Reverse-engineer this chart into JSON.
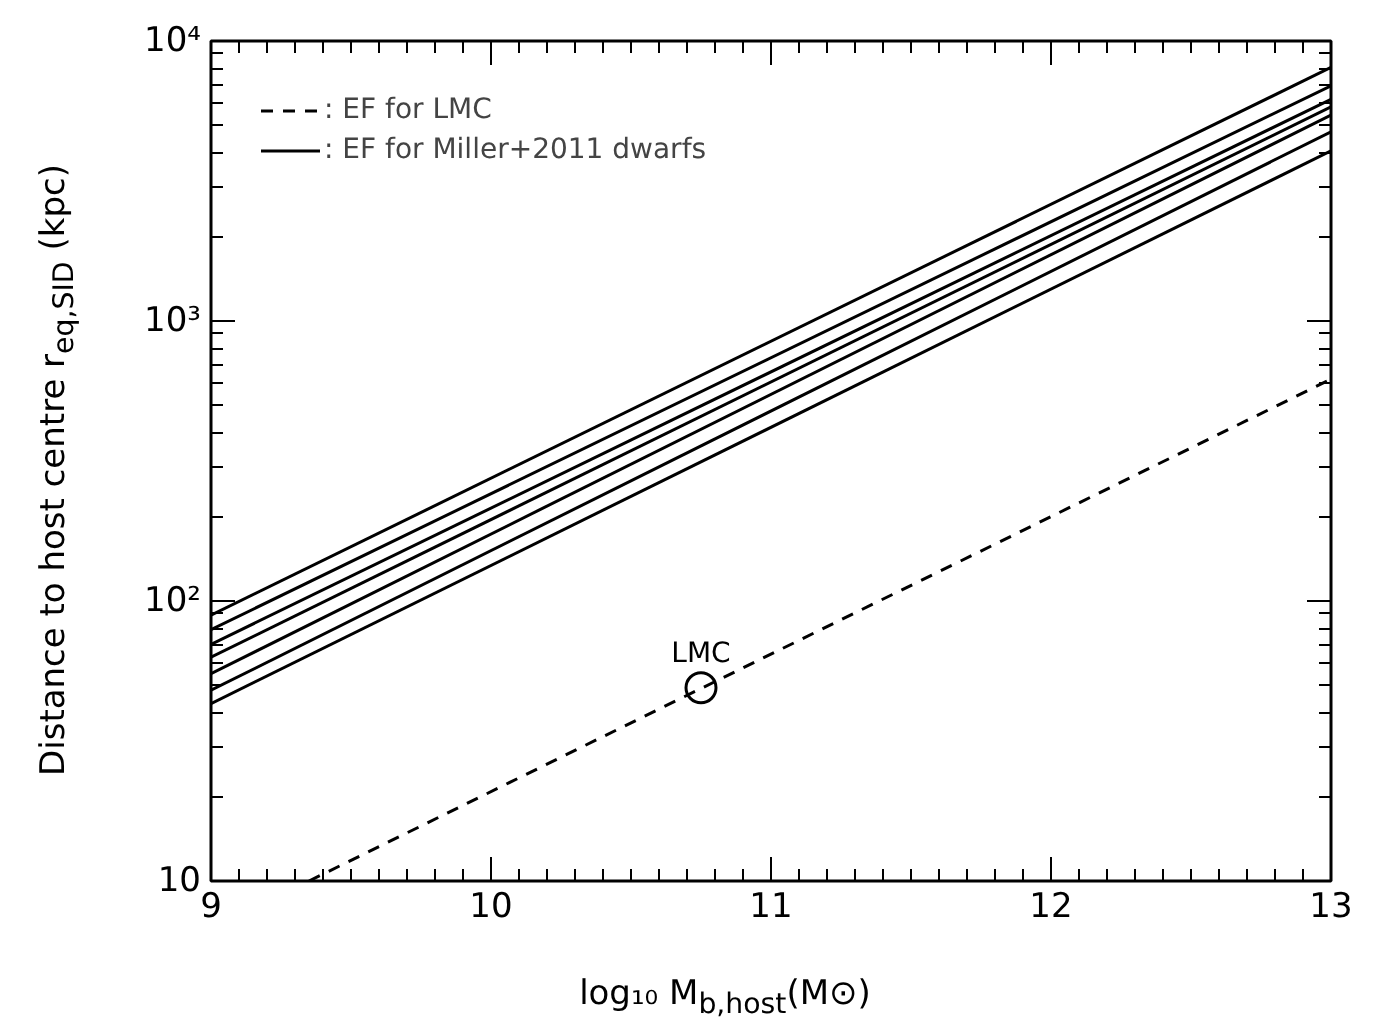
{
  "chart_data": {
    "type": "line",
    "xlabel": "log₁₀ M$_{b,host}$(M⊙)",
    "ylabel": "Distance to host centre r$_{eq,SID}$ (kpc)",
    "x": [
      9,
      13
    ],
    "series": [
      {
        "name": ": EF for LMC",
        "color": "#000000",
        "line_style": "dashed",
        "x": [
          9.35,
          13
        ],
        "values": [
          10,
          620
        ]
      },
      {
        "name": ": EF for Miller+2011 dwarfs",
        "color": "#000000",
        "line_style": "solid",
        "values": [
          89,
          8050
        ]
      },
      {
        "color": "#000000",
        "line_style": "solid",
        "values": [
          79,
          6920
        ]
      },
      {
        "color": "#000000",
        "line_style": "solid",
        "values": [
          70,
          6190
        ]
      },
      {
        "color": "#000000",
        "line_style": "solid",
        "values": [
          63,
          5820
        ]
      },
      {
        "color": "#000000",
        "line_style": "solid",
        "values": [
          55,
          5440
        ]
      },
      {
        "color": "#000000",
        "line_style": "solid",
        "values": [
          48,
          4740
        ]
      },
      {
        "color": "#000000",
        "line_style": "solid",
        "values": [
          43,
          4050
        ]
      },
      {
        "type": "scatter",
        "color": "#000000",
        "marker": "circle",
        "x": [
          10.75
        ],
        "values": [
          49
        ]
      }
    ],
    "annotations": [
      {
        "text": "LMC",
        "x": 10.75,
        "y": 49
      }
    ],
    "xlim": [
      9,
      13
    ],
    "xticks": [
      9,
      10,
      11,
      12,
      13
    ],
    "ylim": [
      10,
      10000
    ],
    "yticks": [
      10,
      {
        "value": 100,
        "label": "10²"
      },
      {
        "value": 1000,
        "label": "10³"
      },
      {
        "value": 10000,
        "label": "10⁴"
      }
    ],
    "log": "y",
    "grid": false,
    "legend": "top left"
  }
}
